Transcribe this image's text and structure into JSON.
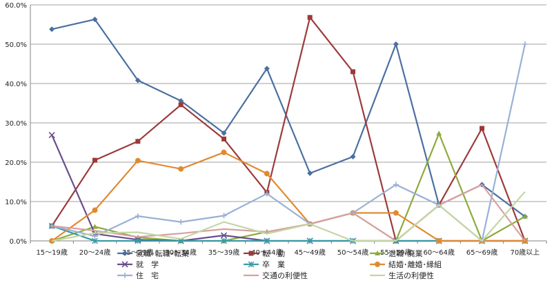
{
  "chart_data": {
    "type": "line",
    "categories": [
      "15～19歳",
      "20～24歳",
      "25～29歳",
      "30～34歳",
      "35～39歳",
      "40～44歳",
      "45～49歳",
      "50～54歳",
      "55～59歳",
      "60～64歳",
      "65～69歳",
      "70歳以上"
    ],
    "ylim": [
      0,
      60
    ],
    "yticks": [
      "0.0%",
      "10.0%",
      "20.0%",
      "30.0%",
      "40.0%",
      "50.0%",
      "60.0%"
    ],
    "grid": true,
    "legend_position": "bottom",
    "series": [
      {
        "name": "就職･転職･転業",
        "color": "#4a6fa0",
        "marker": "diamond",
        "values": [
          53.8,
          56.3,
          40.8,
          35.6,
          27.4,
          43.8,
          17.2,
          21.4,
          50.0,
          9.1,
          14.3,
          6.2
        ]
      },
      {
        "name": "転　勤",
        "color": "#9b3a3a",
        "marker": "square",
        "values": [
          3.8,
          20.5,
          25.3,
          34.6,
          25.9,
          12.3,
          56.8,
          43.0,
          0.0,
          9.1,
          28.6,
          0.0
        ]
      },
      {
        "name": "退職･廃業",
        "color": "#8caa3c",
        "marker": "triangle",
        "values": [
          0.0,
          3.6,
          0.9,
          0.0,
          0.0,
          2.3,
          4.3,
          7.1,
          0.0,
          27.3,
          0.0,
          6.2
        ]
      },
      {
        "name": "就　学",
        "color": "#6a4c8c",
        "marker": "x",
        "values": [
          26.9,
          1.8,
          0.3,
          0.0,
          1.4,
          0.0,
          0.0,
          0.0,
          0.0,
          0.0,
          0.0,
          0.0
        ]
      },
      {
        "name": "卒　業",
        "color": "#3a9aa8",
        "marker": "star",
        "values": [
          3.8,
          0.0,
          0.0,
          0.0,
          0.0,
          0.0,
          0.0,
          0.0,
          0.0,
          0.0,
          0.0,
          0.0
        ]
      },
      {
        "name": "結婚･離婚･縁組",
        "color": "#e08a30",
        "marker": "circle",
        "values": [
          0.0,
          7.8,
          20.4,
          18.3,
          22.5,
          17.1,
          4.3,
          7.1,
          7.1,
          0.0,
          0.0,
          0.0
        ]
      },
      {
        "name": "住　宅",
        "color": "#99b0d6",
        "marker": "plus",
        "values": [
          3.8,
          1.2,
          6.3,
          4.8,
          6.4,
          12.0,
          4.3,
          7.1,
          14.3,
          9.1,
          0.0,
          50.0
        ]
      },
      {
        "name": "交通の利便性",
        "color": "#d8a0a0",
        "marker": "none",
        "values": [
          3.8,
          2.6,
          1.0,
          1.9,
          3.0,
          2.3,
          4.3,
          7.1,
          0.0,
          9.1,
          14.3,
          0.0
        ]
      },
      {
        "name": "生活の利便性",
        "color": "#c4d6a4",
        "marker": "none",
        "values": [
          0.0,
          2.0,
          2.2,
          0.5,
          4.8,
          1.8,
          4.3,
          0.0,
          0.0,
          9.1,
          0.0,
          12.5
        ]
      }
    ]
  }
}
